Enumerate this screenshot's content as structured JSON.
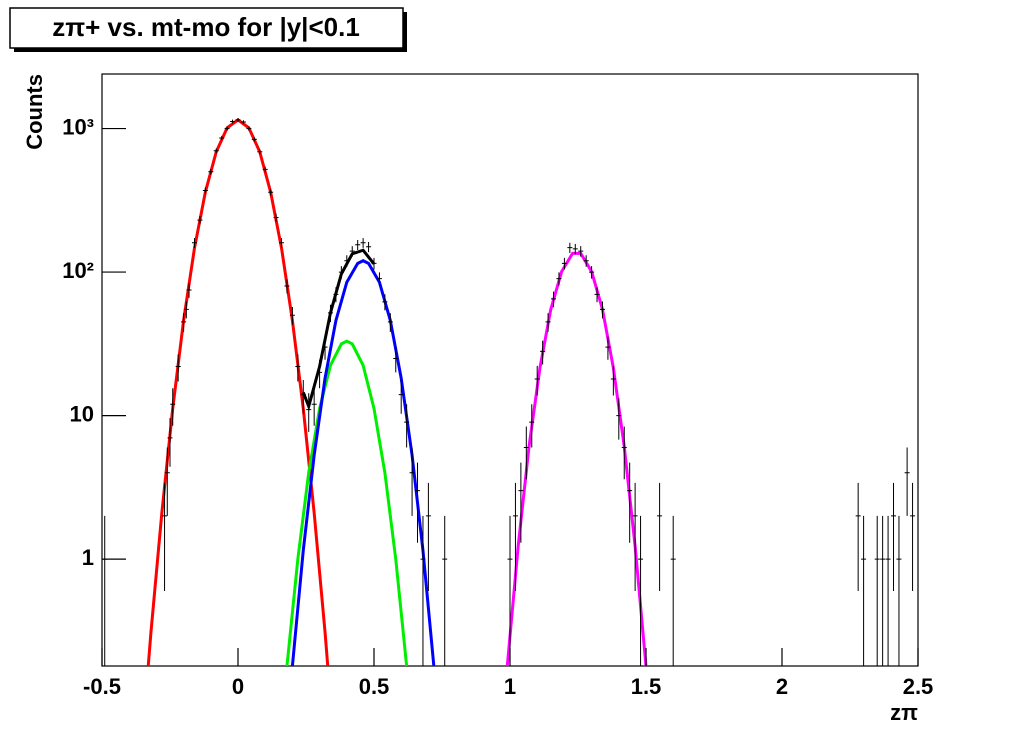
{
  "chart_data": {
    "type": "scatter",
    "title": "zπ+ vs. mt-mo for |y|<0.1",
    "x_label": "zπ",
    "y_label": "Counts",
    "yscale": "log",
    "xlim": [
      -0.5,
      2.5
    ],
    "ylim": [
      0.18,
      2400
    ],
    "xticks": [
      -0.5,
      0,
      0.5,
      1,
      1.5,
      2,
      2.5
    ],
    "yticks": [
      1,
      10,
      {
        "value": 100,
        "label": "10²"
      },
      {
        "value": 1000,
        "label": "10³"
      }
    ],
    "series": [
      {
        "type": "errorbar",
        "color": "#000000",
        "x": [
          -0.49,
          -0.27,
          -0.26,
          -0.25,
          -0.24,
          -0.22,
          -0.2,
          -0.19,
          -0.18,
          -0.16,
          -0.14,
          -0.12,
          -0.1,
          -0.08,
          -0.06,
          -0.04,
          -0.02,
          0,
          0.02,
          0.04,
          0.06,
          0.08,
          0.1,
          0.12,
          0.14,
          0.16,
          0.18,
          0.2,
          0.22,
          0.24,
          0.26,
          0.28,
          0.3,
          0.32,
          0.34,
          0.36,
          0.38,
          0.4,
          0.42,
          0.44,
          0.46,
          0.48,
          0.5,
          0.52,
          0.54,
          0.56,
          0.58,
          0.6,
          0.62,
          0.64,
          0.66,
          0.68,
          0.7,
          0.76,
          1.0,
          1.02,
          1.04,
          1.06,
          1.08,
          1.1,
          1.12,
          1.14,
          1.16,
          1.18,
          1.2,
          1.22,
          1.24,
          1.26,
          1.28,
          1.3,
          1.32,
          1.34,
          1.36,
          1.38,
          1.4,
          1.42,
          1.44,
          1.46,
          1.48,
          1.55,
          1.6,
          2.28,
          2.3,
          2.35,
          2.37,
          2.39,
          2.41,
          2.43,
          2.46,
          2.48
        ],
        "values": [
          1,
          2,
          4,
          7,
          12,
          22,
          45,
          55,
          75,
          160,
          230,
          370,
          500,
          700,
          860,
          1000,
          1120,
          1150,
          1110,
          1000,
          840,
          690,
          520,
          360,
          240,
          160,
          80,
          50,
          22,
          14,
          11,
          12,
          20,
          30,
          52,
          70,
          100,
          120,
          140,
          155,
          160,
          150,
          115,
          90,
          62,
          45,
          25,
          14,
          9,
          4,
          3,
          1,
          2,
          1,
          1,
          2,
          3,
          6,
          9,
          18,
          28,
          45,
          65,
          90,
          115,
          148,
          145,
          140,
          120,
          100,
          70,
          55,
          30,
          18,
          10,
          6,
          3,
          2,
          1,
          2,
          1,
          2,
          1,
          1,
          1,
          1,
          2,
          1,
          4,
          2
        ],
        "errors": [
          1,
          1.4,
          2,
          2.6,
          3.5,
          4.7,
          6.7,
          7.4,
          8.7,
          12.6,
          15.2,
          19.2,
          22.4,
          26.5,
          29.3,
          31.6,
          33.5,
          33.9,
          33.3,
          31.6,
          29,
          26.3,
          22.8,
          19,
          15.5,
          12.6,
          8.9,
          7.1,
          4.7,
          3.7,
          3.3,
          3.5,
          4.5,
          5.5,
          7.2,
          8.4,
          10,
          11,
          11.8,
          12.4,
          12.6,
          12.2,
          10.7,
          9.5,
          7.9,
          6.7,
          5,
          3.7,
          3,
          2,
          1.7,
          1,
          1.4,
          1,
          1,
          1.4,
          1.7,
          2.4,
          3,
          4.2,
          5.3,
          6.7,
          8.1,
          9.5,
          10.7,
          12.2,
          12,
          11.8,
          11,
          10,
          8.4,
          7.4,
          5.5,
          4.2,
          3.2,
          2.4,
          1.7,
          1.4,
          1,
          1.4,
          1,
          1.4,
          1,
          1,
          1,
          1,
          1.4,
          1,
          2,
          1.4
        ]
      },
      {
        "type": "line",
        "color": "#ff0000",
        "x": [
          -0.33,
          -0.32,
          -0.28,
          -0.24,
          -0.2,
          -0.16,
          -0.12,
          -0.08,
          -0.04,
          0,
          0.04,
          0.08,
          0.12,
          0.16,
          0.2,
          0.24,
          0.28,
          0.32,
          0.33
        ],
        "values": [
          0.18,
          0.31,
          2.1,
          11.2,
          46,
          147,
          361,
          688,
          1011,
          1150,
          1011,
          688,
          361,
          147,
          46,
          11.2,
          2.1,
          0.31,
          0.18
        ]
      },
      {
        "type": "line",
        "color": "#00ee00",
        "x": [
          0.18,
          0.22,
          0.26,
          0.3,
          0.34,
          0.38,
          0.4,
          0.42,
          0.46,
          0.5,
          0.54,
          0.58,
          0.62
        ],
        "values": [
          0.18,
          1.0,
          4.0,
          11.2,
          22.4,
          31.6,
          33,
          31.6,
          22.4,
          11.2,
          4.0,
          1.0,
          0.18
        ]
      },
      {
        "type": "line",
        "color": "#0000ff",
        "x": [
          0.2,
          0.24,
          0.28,
          0.32,
          0.36,
          0.4,
          0.44,
          0.46,
          0.48,
          0.52,
          0.56,
          0.6,
          0.64,
          0.68,
          0.72
        ],
        "values": [
          0.18,
          1.15,
          5.3,
          18.2,
          46,
          85,
          115,
          120,
          115,
          85,
          46,
          18.2,
          5.3,
          1.15,
          0.18
        ]
      },
      {
        "type": "line",
        "color": "#000000",
        "x": [
          0.24,
          0.26,
          0.3,
          0.34,
          0.38,
          0.42,
          0.46,
          0.5
        ],
        "values": [
          14.5,
          11.6,
          22,
          52,
          97,
          134,
          142,
          114
        ]
      },
      {
        "type": "line",
        "color": "#ff00ff",
        "x": [
          0.99,
          1.03,
          1.07,
          1.11,
          1.15,
          1.19,
          1.23,
          1.26,
          1.3,
          1.34,
          1.38,
          1.42,
          1.46,
          1.5
        ],
        "values": [
          0.18,
          1.23,
          6.1,
          21.5,
          55,
          101,
          135,
          135,
          101,
          55,
          21.5,
          6.1,
          1.23,
          0.18
        ]
      }
    ]
  }
}
